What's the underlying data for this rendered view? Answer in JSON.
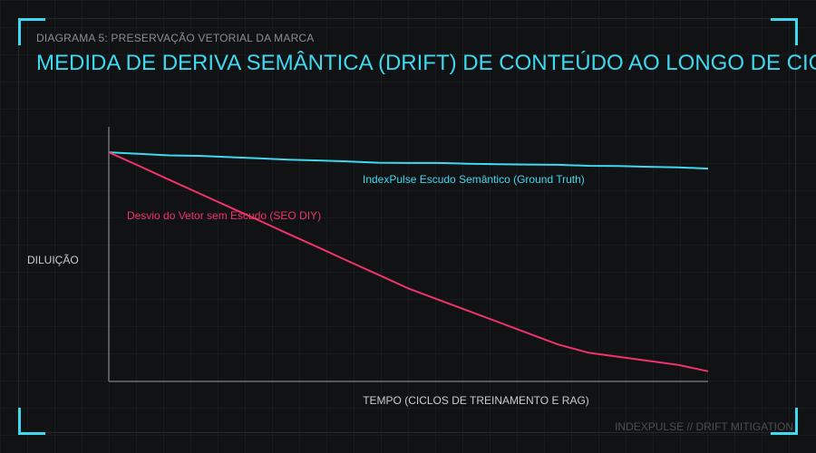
{
  "header": {
    "subtitle": "DIAGRAMA 5: PRESERVAÇÃO VETORIAL DA MARCA",
    "title": "MEDIDA DE DERIVA SEMÂNTICA (DRIFT) DE CONTEÚDO AO LONGO DE CICLOS"
  },
  "footer": {
    "text": "INDEXPULSE // DRIFT MITIGATION"
  },
  "colors": {
    "accent": "#3fd8ef",
    "shield_series": "#3fd8ef",
    "diy_series": "#f0336b",
    "axis": "#6b6e74",
    "background": "#111214"
  },
  "chart_data": {
    "type": "line",
    "title": "MEDIDA DE DERIVA SEMÂNTICA (DRIFT) DE CONTEÚDO AO LONGO DE CICLOS",
    "xlabel": "TEMPO (CICLOS DE TREINAMENTO E RAG)",
    "ylabel": "DILUIÇÃO",
    "x": [
      0,
      1,
      2,
      3,
      4,
      5,
      6,
      7,
      8,
      9,
      10,
      11,
      12,
      13,
      14,
      15,
      16,
      17,
      18,
      19,
      20
    ],
    "xlim": [
      0,
      20
    ],
    "ylim": [
      0,
      100
    ],
    "grid": false,
    "legend": "inline",
    "series": [
      {
        "name": "IndexPulse Escudo Semântico (Ground Truth)",
        "color": "#3fd8ef",
        "values": [
          90,
          89.4,
          88.8,
          88.6,
          88.1,
          87.6,
          87.1,
          86.8,
          86.4,
          85.9,
          85.8,
          85.8,
          85.5,
          85.3,
          85.2,
          85.1,
          84.7,
          84.6,
          84.3,
          84.1,
          83.6
        ]
      },
      {
        "name": "Desvio do Vetor sem Escudo (SEO DIY)",
        "color": "#f0336b",
        "values": [
          90,
          84.7,
          79.3,
          74,
          68.6,
          63.3,
          57.9,
          52.6,
          47.2,
          41.9,
          36.5,
          32.1,
          27.7,
          23.3,
          18.9,
          14.5,
          11.3,
          9.7,
          8.1,
          6.5,
          4
        ]
      }
    ]
  }
}
